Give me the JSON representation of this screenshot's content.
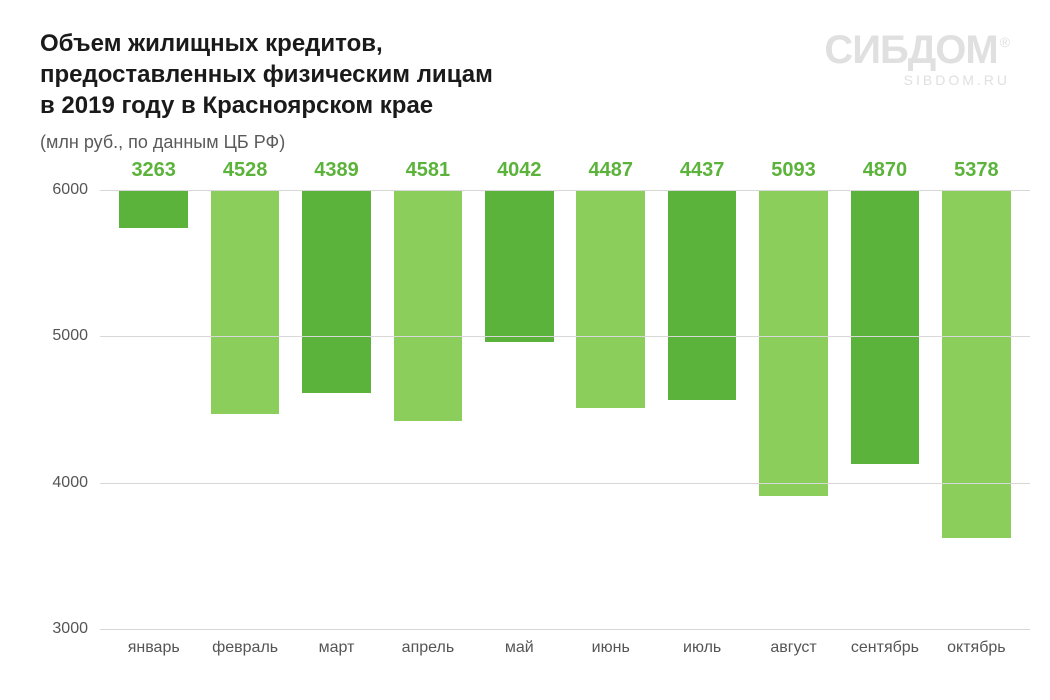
{
  "header": {
    "title_line1": "Объем жилищных кредитов,",
    "title_line2": "предоставленных физическим лицам",
    "title_line3": "в 2019 году в Красноярском крае",
    "subtitle": "(млн руб., по данным ЦБ РФ)",
    "title_fontsize": 24,
    "title_color": "#1a1a1a",
    "subtitle_fontsize": 18,
    "subtitle_color": "#5a5a5a"
  },
  "watermark": {
    "main": "СИБДОМ",
    "sup": "®",
    "sub": "SIBDOM.RU",
    "color": "#e0e0e0",
    "main_fontsize": 40,
    "sub_fontsize": 14
  },
  "chart": {
    "type": "bar",
    "categories": [
      "январь",
      "февраль",
      "март",
      "апрель",
      "май",
      "июнь",
      "июль",
      "август",
      "сентябрь",
      "октябрь"
    ],
    "values": [
      3263,
      4528,
      4389,
      4581,
      4042,
      4487,
      4437,
      5093,
      4870,
      5378
    ],
    "bar_colors": [
      "#5cb33b",
      "#8cce5c",
      "#5cb33b",
      "#8cce5c",
      "#5cb33b",
      "#8cce5c",
      "#5cb33b",
      "#8cce5c",
      "#5cb33b",
      "#8cce5c"
    ],
    "value_label_color": "#5cb33b",
    "value_label_fontsize": 20,
    "ylim": [
      3000,
      6000
    ],
    "ytick_step": 1000,
    "yticks": [
      3000,
      4000,
      5000,
      6000
    ],
    "axis_label_fontsize": 16,
    "axis_label_color": "#555555",
    "grid_color": "#d8d8d8",
    "axis_line_color": "#888888",
    "background_color": "#ffffff",
    "bar_width_ratio": 0.75
  }
}
